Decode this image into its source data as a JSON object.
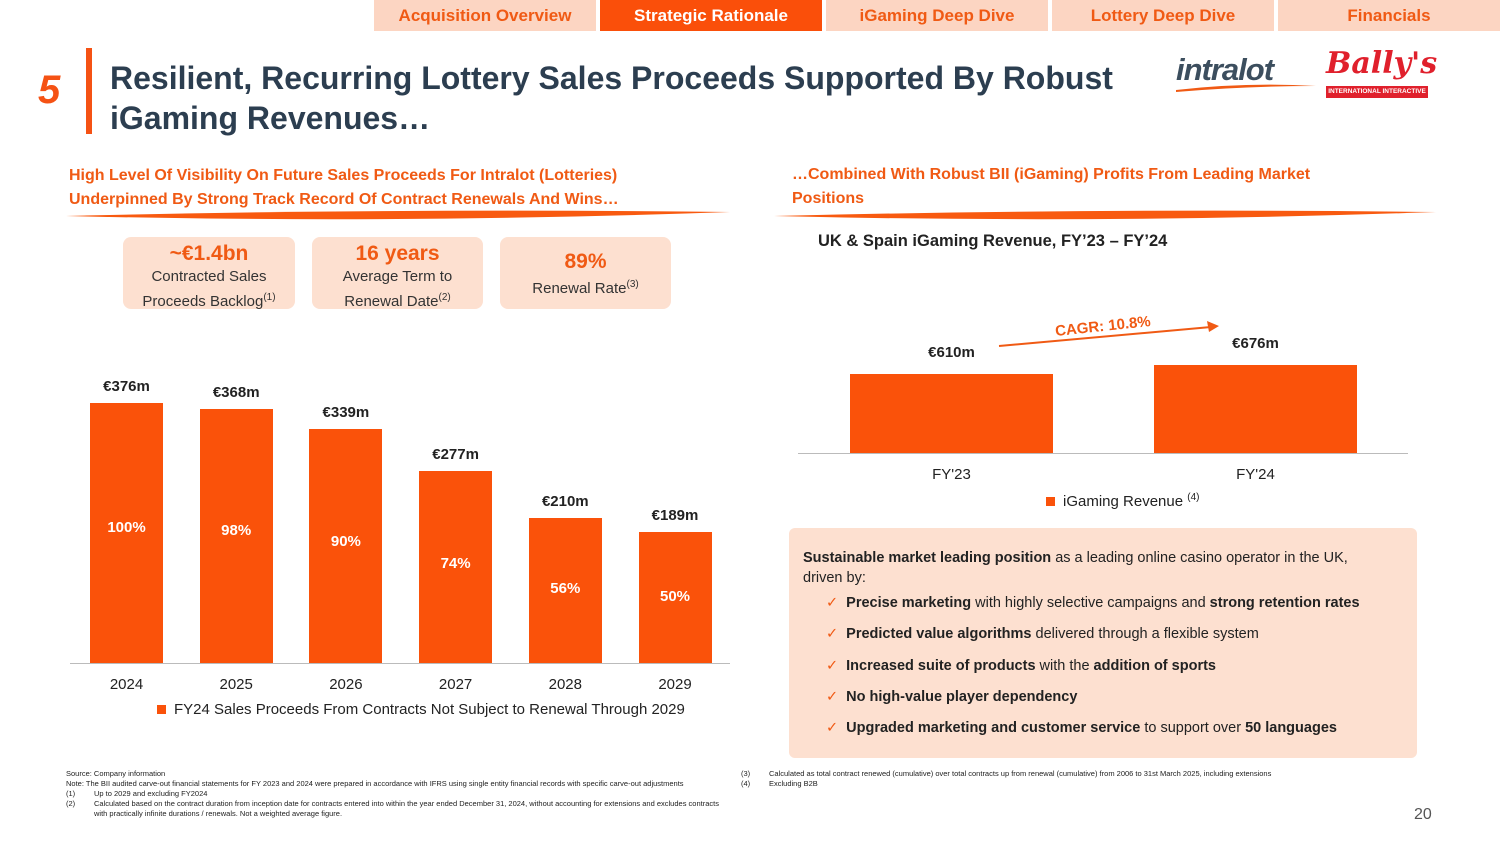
{
  "nav": {
    "tabs": [
      "Acquisition Overview",
      "Strategic Rationale",
      "iGaming Deep Dive",
      "Lottery Deep Dive",
      "Financials"
    ],
    "active_index": 1
  },
  "header": {
    "section_number": "5",
    "title": "Resilient, Recurring Lottery Sales Proceeds Supported By Robust iGaming Revenues…",
    "logo_intralot": "intralot",
    "logo_bally": "Bally's",
    "logo_bally_sub": "INTERNATIONAL INTERACTIVE"
  },
  "left": {
    "heading_line1": "High Level Of Visibility On Future Sales Proceeds For Intralot (Lotteries)",
    "heading_line2": "Underpinned By Strong Track Record Of Contract Renewals And Wins…",
    "kpis": [
      {
        "big": "~€1.4bn",
        "line1": "Contracted Sales",
        "line2": "Proceeds Backlog",
        "sup": "(1)"
      },
      {
        "big": "16 years",
        "line1": "Average Term to",
        "line2": "Renewal Date",
        "sup": "(2)"
      },
      {
        "big": "89%",
        "line1": "Renewal Rate",
        "sup": "(3)"
      }
    ]
  },
  "right": {
    "heading_line1": "…Combined With Robust BII (iGaming) Profits From Leading Market",
    "heading_line2": "Positions",
    "chart_title": "UK & Spain iGaming Revenue, FY’23 – FY’24",
    "cagr": "CAGR: 10.8%"
  },
  "chart_data": [
    {
      "type": "bar",
      "categories": [
        "2024",
        "2025",
        "2026",
        "2027",
        "2028",
        "2029"
      ],
      "values": [
        376,
        368,
        339,
        277,
        210,
        189
      ],
      "value_labels": [
        "€376m",
        "€368m",
        "€339m",
        "€277m",
        "€210m",
        "€189m"
      ],
      "inner_labels": [
        "100%",
        "98%",
        "90%",
        "74%",
        "56%",
        "50%"
      ],
      "series": [
        {
          "name": "FY24 Sales Proceeds From Contracts Not Subject to Renewal Through 2029",
          "values": [
            376,
            368,
            339,
            277,
            210,
            189
          ]
        }
      ],
      "ylim": [
        0,
        376
      ],
      "color": "#fa520a"
    },
    {
      "type": "bar",
      "title": "UK & Spain iGaming Revenue, FY’23 – FY’24",
      "categories": [
        "FY'23",
        "FY'24"
      ],
      "values": [
        610,
        676
      ],
      "value_labels": [
        "€610m",
        "€676m"
      ],
      "series": [
        {
          "name": "iGaming Revenue",
          "sup": "(4)",
          "values": [
            610,
            676
          ]
        }
      ],
      "ylim": [
        0,
        676
      ],
      "color": "#fa520a"
    }
  ],
  "box": {
    "intro_bold": "Sustainable market leading position",
    "intro_rest": " as a leading online casino operator in the UK,",
    "intro_line2": "driven by:",
    "bullets": [
      [
        {
          "t": "Precise marketing",
          "b": true
        },
        {
          "t": " with highly selective campaigns and ",
          "b": false
        },
        {
          "t": "strong retention rates",
          "b": true
        }
      ],
      [
        {
          "t": "Predicted value algorithms",
          "b": true
        },
        {
          "t": " delivered through a flexible system",
          "b": false
        }
      ],
      [
        {
          "t": "Increased suite of products",
          "b": true
        },
        {
          "t": " with the ",
          "b": false
        },
        {
          "t": "addition of sports",
          "b": true
        }
      ],
      [
        {
          "t": "No high-value player dependency",
          "b": true
        }
      ],
      [
        {
          "t": "Upgraded marketing and customer service",
          "b": true
        },
        {
          "t": " to support over ",
          "b": false
        },
        {
          "t": "50 languages",
          "b": true
        }
      ]
    ]
  },
  "footnotes": {
    "source": "Source: Company information",
    "note": "Note: The BII audited carve-out financial statements for FY 2023 and 2024 were prepared in accordance with IFRS using single entity financial records with specific carve-out adjustments",
    "n1_num": "(1)",
    "n1": "Up to 2029 and excluding FY2024",
    "n2_num": "(2)",
    "n2": "Calculated based on the contract duration from inception date for contracts entered into within the year ended December 31, 2024, without accounting for extensions and excludes contracts with practically infinite durations / renewals. Not a weighted average figure.",
    "n3_num": "(3)",
    "n3": "Calculated as total contract renewed (cumulative) over total contracts up from renewal (cumulative) from 2006 to 31st March 2025, including extensions",
    "n4_num": "(4)",
    "n4": "Excluding B2B"
  },
  "page_number": "20"
}
